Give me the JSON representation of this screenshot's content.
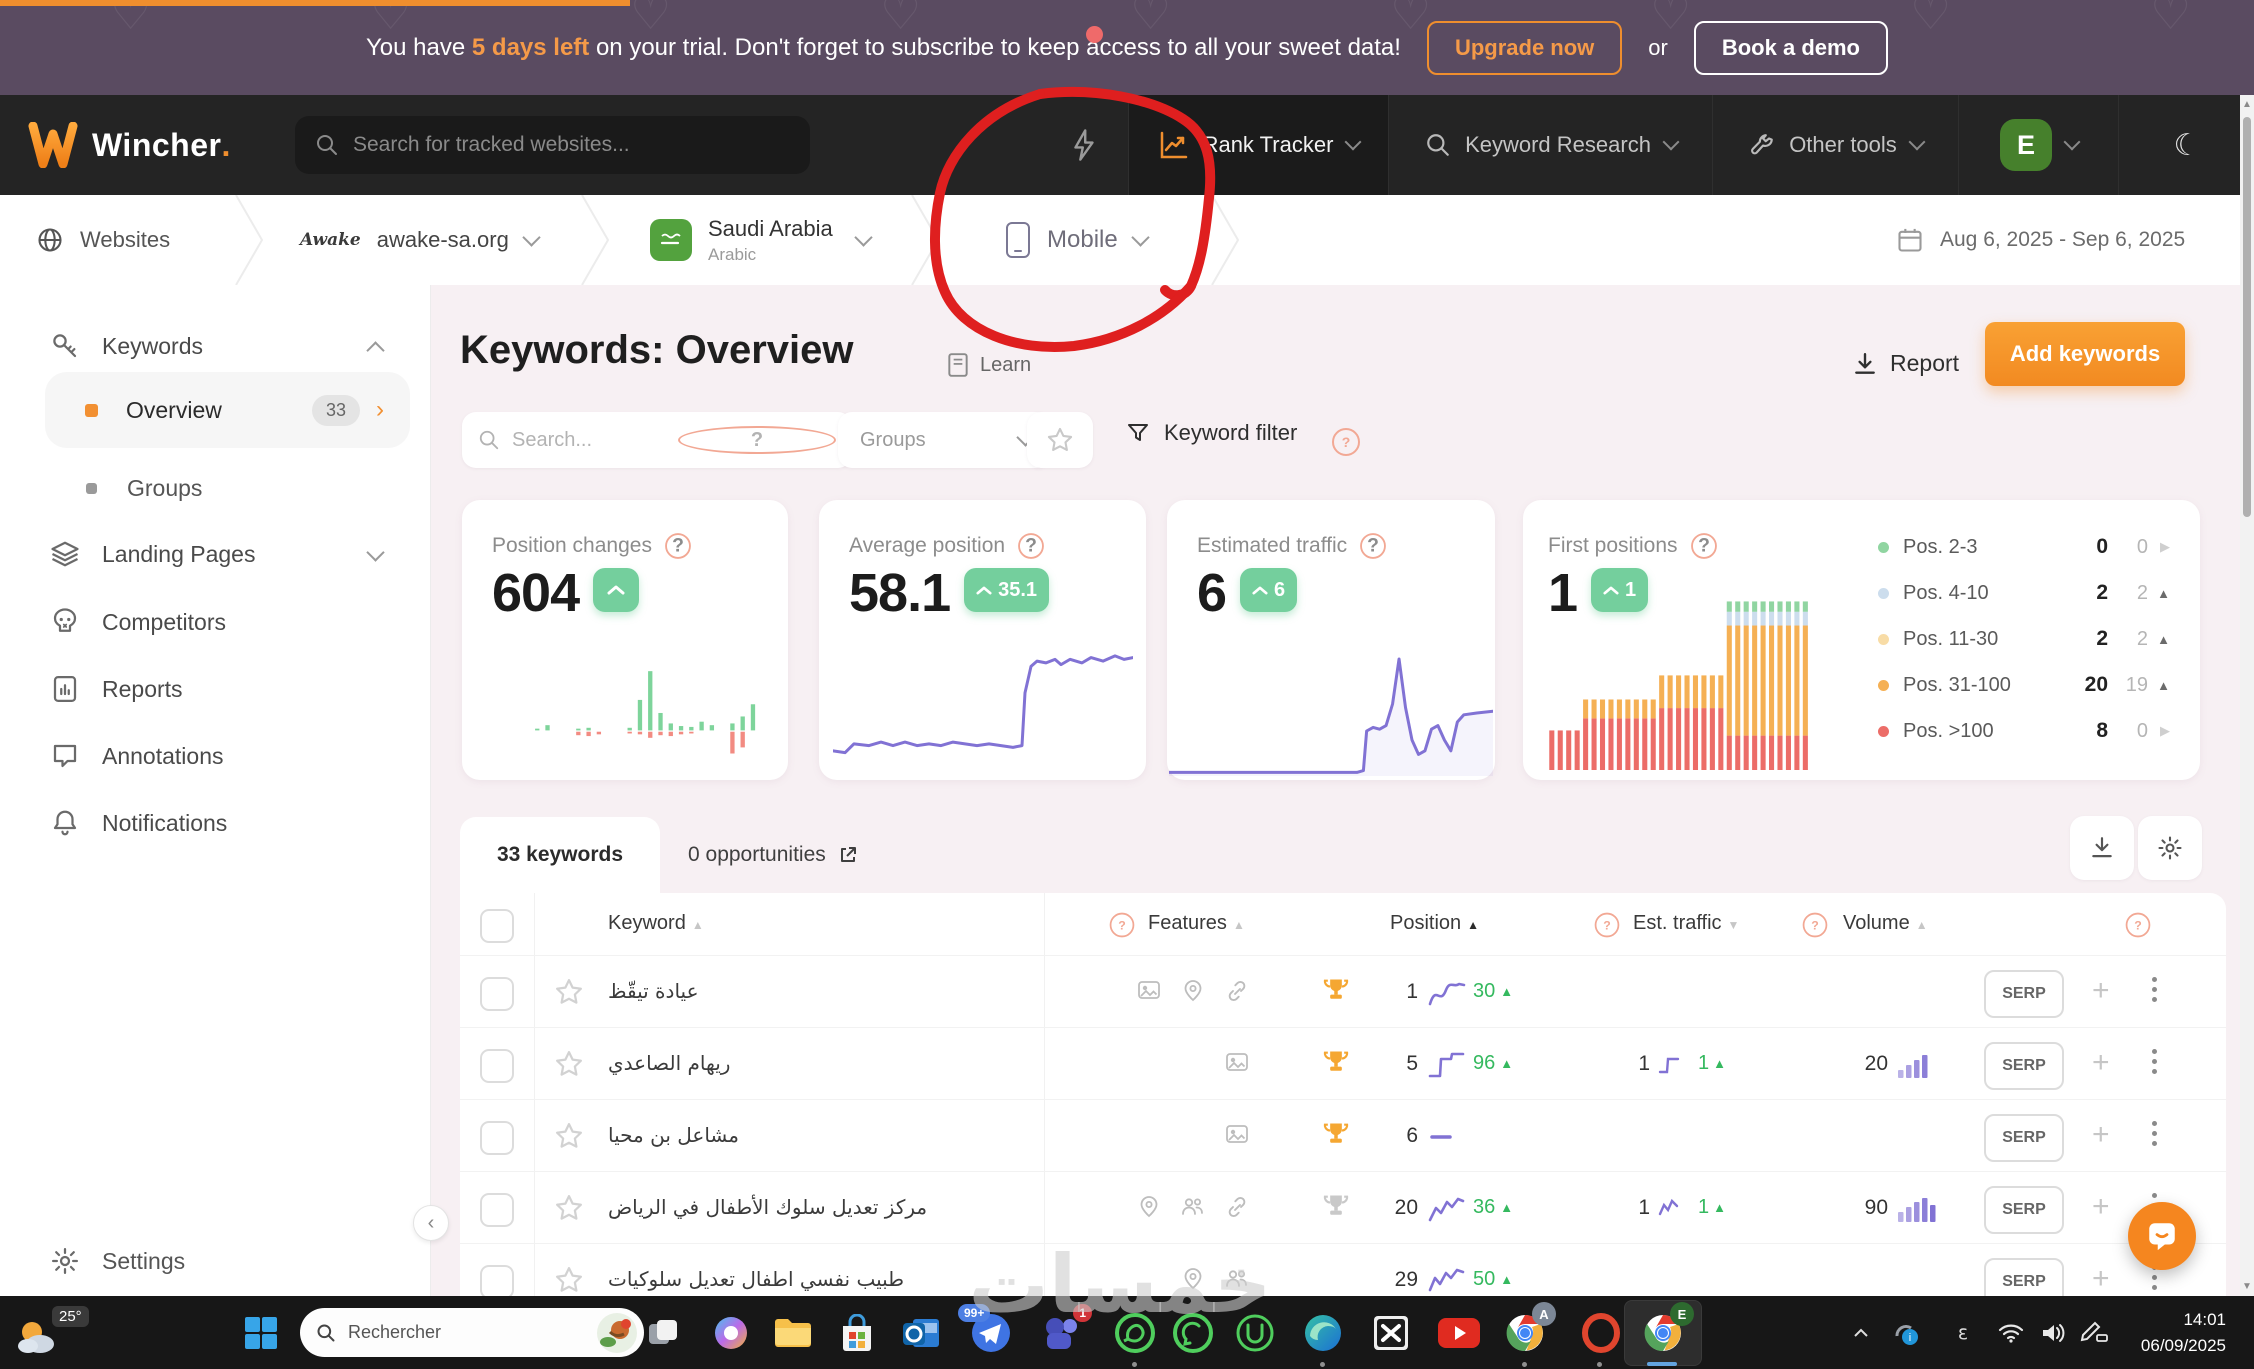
{
  "colors": {
    "accent_orange": "#f7941e",
    "purple": "#8172d4",
    "green_badge": "#74cf9d",
    "banner_bg": "#5a4b61",
    "green_text": "#35b95f"
  },
  "banner": {
    "pre": "You have ",
    "highlight": "5 days left",
    "post": " on your trial. Don't forget to subscribe to keep access to all your sweet data!",
    "upgrade": "Upgrade now",
    "or": "or",
    "demo": "Book a demo"
  },
  "navbar": {
    "brand": "Wincher",
    "brand_dot": ".",
    "search_placeholder": "Search for tracked websites...",
    "rank_tracker": "Rank Tracker",
    "keyword_research": "Keyword Research",
    "other_tools": "Other tools",
    "avatar": "E"
  },
  "breadcrumb": {
    "websites": "Websites",
    "favicon": "Awake",
    "domain": "awake-sa.org",
    "country": "Saudi Arabia",
    "language": "Arabic",
    "device": "Mobile",
    "date_range": "Aug 6, 2025 - Sep 6, 2025"
  },
  "sidebar": {
    "keywords": "Keywords",
    "overview": "Overview",
    "overview_badge": "33",
    "groups": "Groups",
    "landing_pages": "Landing Pages",
    "competitors": "Competitors",
    "reports": "Reports",
    "annotations": "Annotations",
    "notifications": "Notifications",
    "settings": "Settings"
  },
  "page": {
    "title": "Keywords: Overview",
    "learn": "Learn",
    "report": "Report",
    "add_keywords": "Add keywords",
    "search_placeholder": "Search...",
    "groups_dropdown": "Groups",
    "keyword_filter": "Keyword filter"
  },
  "chart_data": [
    {
      "id": "position_changes",
      "type": "bar",
      "title": "Position changes",
      "value": "604",
      "trend": "up",
      "up": [
        2,
        6,
        0,
        0,
        2,
        3,
        0,
        0,
        0,
        3,
        35,
        68,
        20,
        8,
        5,
        4,
        10,
        6,
        0,
        8,
        16,
        30
      ],
      "down": [
        0,
        0,
        0,
        0,
        4,
        5,
        3,
        0,
        0,
        2,
        3,
        7,
        4,
        5,
        3,
        2,
        0,
        0,
        0,
        25,
        18,
        0
      ],
      "colors": {
        "up": "#7ed49b",
        "down": "#f28b82"
      }
    },
    {
      "id": "average_position",
      "type": "line",
      "title": "Average position",
      "value": "58.1",
      "change": "35.1",
      "trend": "up",
      "color": "#8172d4",
      "points": [
        [
          0,
          88
        ],
        [
          4,
          89
        ],
        [
          7,
          84
        ],
        [
          12,
          85
        ],
        [
          16,
          83
        ],
        [
          20,
          85
        ],
        [
          24,
          83
        ],
        [
          28,
          85
        ],
        [
          32,
          84
        ],
        [
          36,
          85
        ],
        [
          40,
          83
        ],
        [
          44,
          84
        ],
        [
          48,
          85
        ],
        [
          52,
          84
        ],
        [
          56,
          85
        ],
        [
          60,
          86
        ],
        [
          63,
          85
        ],
        [
          64,
          55
        ],
        [
          66,
          40
        ],
        [
          68,
          37
        ],
        [
          71,
          38
        ],
        [
          74,
          36
        ],
        [
          76,
          39
        ],
        [
          79,
          36
        ],
        [
          83,
          38
        ],
        [
          86,
          35
        ],
        [
          90,
          37
        ],
        [
          94,
          34
        ],
        [
          97,
          36
        ],
        [
          100,
          35
        ]
      ]
    },
    {
      "id": "estimated_traffic",
      "type": "line",
      "title": "Estimated traffic",
      "value": "6",
      "change": "6",
      "trend": "up",
      "color": "#8172d4",
      "points": [
        [
          0,
          98
        ],
        [
          58,
          98
        ],
        [
          60,
          97
        ],
        [
          61,
          75
        ],
        [
          63,
          73
        ],
        [
          65,
          74
        ],
        [
          67,
          72
        ],
        [
          69,
          60
        ],
        [
          71,
          35
        ],
        [
          73,
          62
        ],
        [
          75,
          80
        ],
        [
          77,
          88
        ],
        [
          79,
          86
        ],
        [
          81,
          74
        ],
        [
          83,
          72
        ],
        [
          85,
          80
        ],
        [
          87,
          86
        ],
        [
          89,
          70
        ],
        [
          91,
          66
        ],
        [
          95,
          65
        ],
        [
          100,
          64
        ]
      ]
    },
    {
      "id": "first_positions",
      "type": "stacked-bar",
      "title": "First positions",
      "value": "1",
      "change": "1",
      "trend": "up",
      "segment_colors": [
        "#ec6d68",
        "#f5b054",
        "#ccdded",
        "#90d5a1"
      ],
      "bars": [
        [
          23,
          0,
          0,
          0
        ],
        [
          23,
          0,
          0,
          0
        ],
        [
          23,
          0,
          0,
          0
        ],
        [
          23,
          0,
          0,
          0
        ],
        [
          30,
          11,
          0,
          0
        ],
        [
          30,
          11,
          0,
          0
        ],
        [
          30,
          11,
          0,
          0
        ],
        [
          30,
          11,
          0,
          0
        ],
        [
          30,
          11,
          0,
          0
        ],
        [
          30,
          11,
          0,
          0
        ],
        [
          30,
          11,
          0,
          0
        ],
        [
          30,
          11,
          0,
          0
        ],
        [
          30,
          11,
          0,
          0
        ],
        [
          36,
          19,
          0,
          0
        ],
        [
          36,
          19,
          0,
          0
        ],
        [
          36,
          19,
          0,
          0
        ],
        [
          36,
          19,
          0,
          0
        ],
        [
          36,
          19,
          0,
          0
        ],
        [
          36,
          19,
          0,
          0
        ],
        [
          36,
          19,
          0,
          0
        ],
        [
          36,
          19,
          0,
          0
        ],
        [
          20,
          64,
          8,
          6
        ],
        [
          20,
          64,
          8,
          6
        ],
        [
          20,
          64,
          8,
          6
        ],
        [
          20,
          64,
          8,
          6
        ],
        [
          20,
          64,
          8,
          6
        ],
        [
          20,
          64,
          8,
          6
        ],
        [
          20,
          64,
          8,
          6
        ],
        [
          20,
          64,
          8,
          6
        ],
        [
          20,
          64,
          8,
          6
        ],
        [
          20,
          64,
          8,
          6
        ]
      ],
      "legend": [
        {
          "label": "Pos. 2-3",
          "color": "#90d5a1",
          "value": "0",
          "change": "0",
          "dir": "right"
        },
        {
          "label": "Pos. 4-10",
          "color": "#ccdded",
          "value": "2",
          "change": "2",
          "dir": "up"
        },
        {
          "label": "Pos. 11-30",
          "color": "#f8dca6",
          "value": "2",
          "change": "2",
          "dir": "up"
        },
        {
          "label": "Pos. 31-100",
          "color": "#f5b054",
          "value": "20",
          "change": "19",
          "dir": "up"
        },
        {
          "label": "Pos. >100",
          "color": "#ec6d68",
          "value": "8",
          "change": "0",
          "dir": "right"
        }
      ]
    }
  ],
  "table": {
    "tab_keywords": "33 keywords",
    "tab_opportunities": "0 opportunities",
    "columns": {
      "keyword": "Keyword",
      "features": "Features",
      "position": "Position",
      "est_traffic": "Est. traffic",
      "volume": "Volume"
    },
    "serp_label": "SERP",
    "rows": [
      {
        "keyword": "عيادة تيقّظ",
        "features": [
          "image",
          "pin",
          "link"
        ],
        "trophy": "orange",
        "position": "1",
        "spark": "wave",
        "change": "30",
        "est_value": "",
        "est_spark": "",
        "est_change": "",
        "volume": "",
        "volume_bars": []
      },
      {
        "keyword": "ريهام الصاعدي",
        "features": [
          "image"
        ],
        "trophy": "orange",
        "position": "5",
        "spark": "step",
        "change": "96",
        "est_value": "1",
        "est_spark": "step-sm",
        "est_change": "1",
        "volume": "20",
        "volume_bars": [
          8,
          13,
          18,
          23
        ]
      },
      {
        "keyword": "مشاعل بن محيا",
        "features": [
          "image"
        ],
        "trophy": "orange",
        "position": "6",
        "spark": "dash",
        "change": "",
        "est_value": "",
        "est_spark": "",
        "est_change": "",
        "volume": "",
        "volume_bars": []
      },
      {
        "keyword": "مركز تعديل سلوك الأطفال في الرياض",
        "features": [
          "pin",
          "people",
          "link"
        ],
        "trophy": "gray",
        "position": "20",
        "spark": "zig",
        "change": "36",
        "est_value": "1",
        "est_spark": "zig-sm",
        "est_change": "1",
        "volume": "90",
        "volume_bars": [
          10,
          15,
          20,
          24,
          17
        ]
      },
      {
        "keyword": "طبيب نفسي اطفال تعديل سلوكيات",
        "features": [
          "pin",
          "people"
        ],
        "trophy": "",
        "position": "29",
        "spark": "zig2",
        "change": "50",
        "est_value": "",
        "est_spark": "",
        "est_change": "",
        "volume": "",
        "volume_bars": []
      }
    ]
  },
  "taskbar": {
    "temperature": "25°",
    "search_placeholder": "Rechercher",
    "badge": "99+",
    "lang": "ε",
    "time": "14:01",
    "date": "06/09/2025"
  },
  "watermark": {
    "text": "خمسات"
  }
}
